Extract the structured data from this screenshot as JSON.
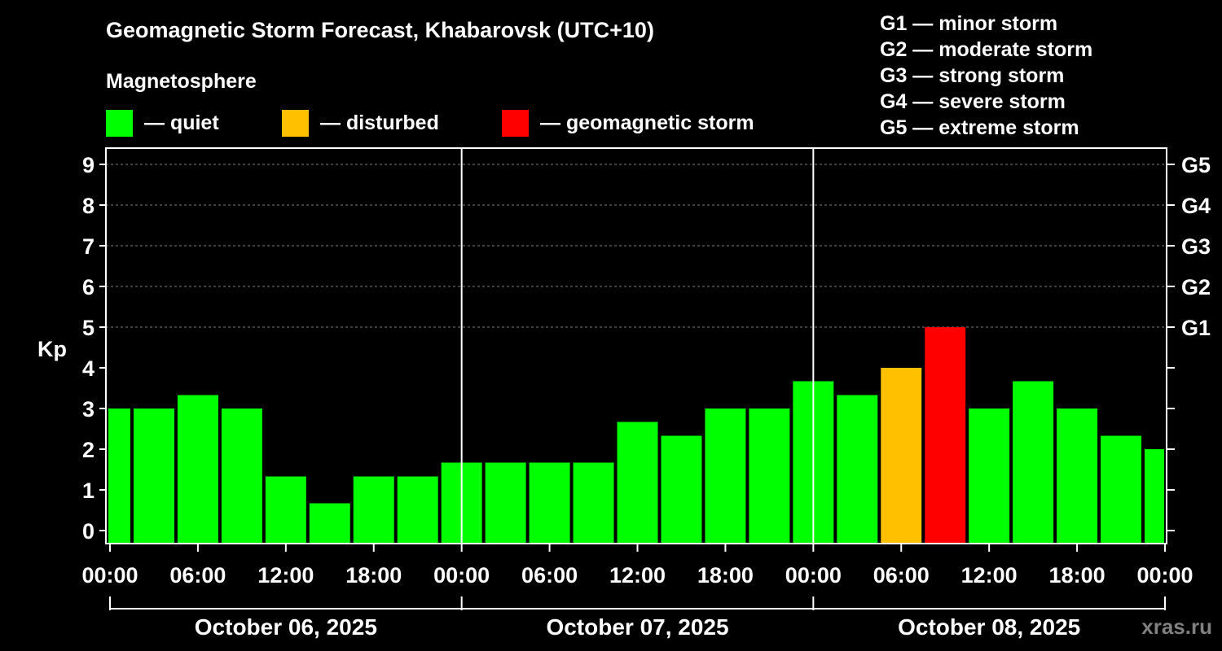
{
  "chart_data": {
    "type": "bar",
    "title": "Geomagnetic Storm Forecast, Khabarovsk (UTC+10)",
    "ylabel": "Kp",
    "ylim": [
      0,
      9
    ],
    "y_ticks": [
      "0",
      "1",
      "2",
      "3",
      "4",
      "5",
      "6",
      "7",
      "8",
      "9"
    ],
    "right_axis_labels": [
      {
        "kp": 5,
        "label": "G1"
      },
      {
        "kp": 6,
        "label": "G2"
      },
      {
        "kp": 7,
        "label": "G3"
      },
      {
        "kp": 8,
        "label": "G4"
      },
      {
        "kp": 9,
        "label": "G5"
      }
    ],
    "x_tick_labels": [
      "00:00",
      "06:00",
      "12:00",
      "18:00",
      "00:00",
      "06:00",
      "12:00",
      "18:00",
      "00:00",
      "06:00",
      "12:00",
      "18:00",
      "00:00"
    ],
    "dates": [
      "October 06, 2025",
      "October 07, 2025",
      "October 08, 2025"
    ],
    "grid": true,
    "status_colors": {
      "quiet": "#00ff00",
      "disturbed": "#ffc000",
      "storm": "#ff0000"
    },
    "bars": [
      {
        "start_hour": 0,
        "kp": 3.0,
        "status": "quiet"
      },
      {
        "start_hour": 3,
        "kp": 3.0,
        "status": "quiet"
      },
      {
        "start_hour": 6,
        "kp": 3.33,
        "status": "quiet"
      },
      {
        "start_hour": 9,
        "kp": 3.0,
        "status": "quiet"
      },
      {
        "start_hour": 12,
        "kp": 1.33,
        "status": "quiet"
      },
      {
        "start_hour": 15,
        "kp": 0.67,
        "status": "quiet"
      },
      {
        "start_hour": 18,
        "kp": 1.33,
        "status": "quiet"
      },
      {
        "start_hour": 21,
        "kp": 1.33,
        "status": "quiet"
      },
      {
        "start_hour": 24,
        "kp": 1.67,
        "status": "quiet"
      },
      {
        "start_hour": 27,
        "kp": 1.67,
        "status": "quiet"
      },
      {
        "start_hour": 30,
        "kp": 1.67,
        "status": "quiet"
      },
      {
        "start_hour": 33,
        "kp": 1.67,
        "status": "quiet"
      },
      {
        "start_hour": 36,
        "kp": 2.67,
        "status": "quiet"
      },
      {
        "start_hour": 39,
        "kp": 2.33,
        "status": "quiet"
      },
      {
        "start_hour": 42,
        "kp": 3.0,
        "status": "quiet"
      },
      {
        "start_hour": 45,
        "kp": 3.0,
        "status": "quiet"
      },
      {
        "start_hour": 48,
        "kp": 3.67,
        "status": "quiet"
      },
      {
        "start_hour": 51,
        "kp": 3.33,
        "status": "quiet"
      },
      {
        "start_hour": 54,
        "kp": 4.0,
        "status": "disturbed"
      },
      {
        "start_hour": 57,
        "kp": 5.0,
        "status": "storm"
      },
      {
        "start_hour": 60,
        "kp": 3.0,
        "status": "quiet"
      },
      {
        "start_hour": 63,
        "kp": 3.67,
        "status": "quiet"
      },
      {
        "start_hour": 66,
        "kp": 3.0,
        "status": "quiet"
      },
      {
        "start_hour": 69,
        "kp": 2.33,
        "status": "quiet"
      },
      {
        "start_hour": 72,
        "kp": 2.0,
        "status": "quiet"
      }
    ]
  },
  "legend": {
    "heading": "Magnetosphere",
    "items": [
      {
        "label": "— quiet",
        "color": "#00ff00"
      },
      {
        "label": "— disturbed",
        "color": "#ffc000"
      },
      {
        "label": "— geomagnetic storm",
        "color": "#ff0000"
      }
    ]
  },
  "storm_levels": [
    "G1 — minor storm",
    "G2 — moderate storm",
    "G3 — strong storm",
    "G4 — severe storm",
    "G5 — extreme storm"
  ],
  "watermark": "xras.ru"
}
